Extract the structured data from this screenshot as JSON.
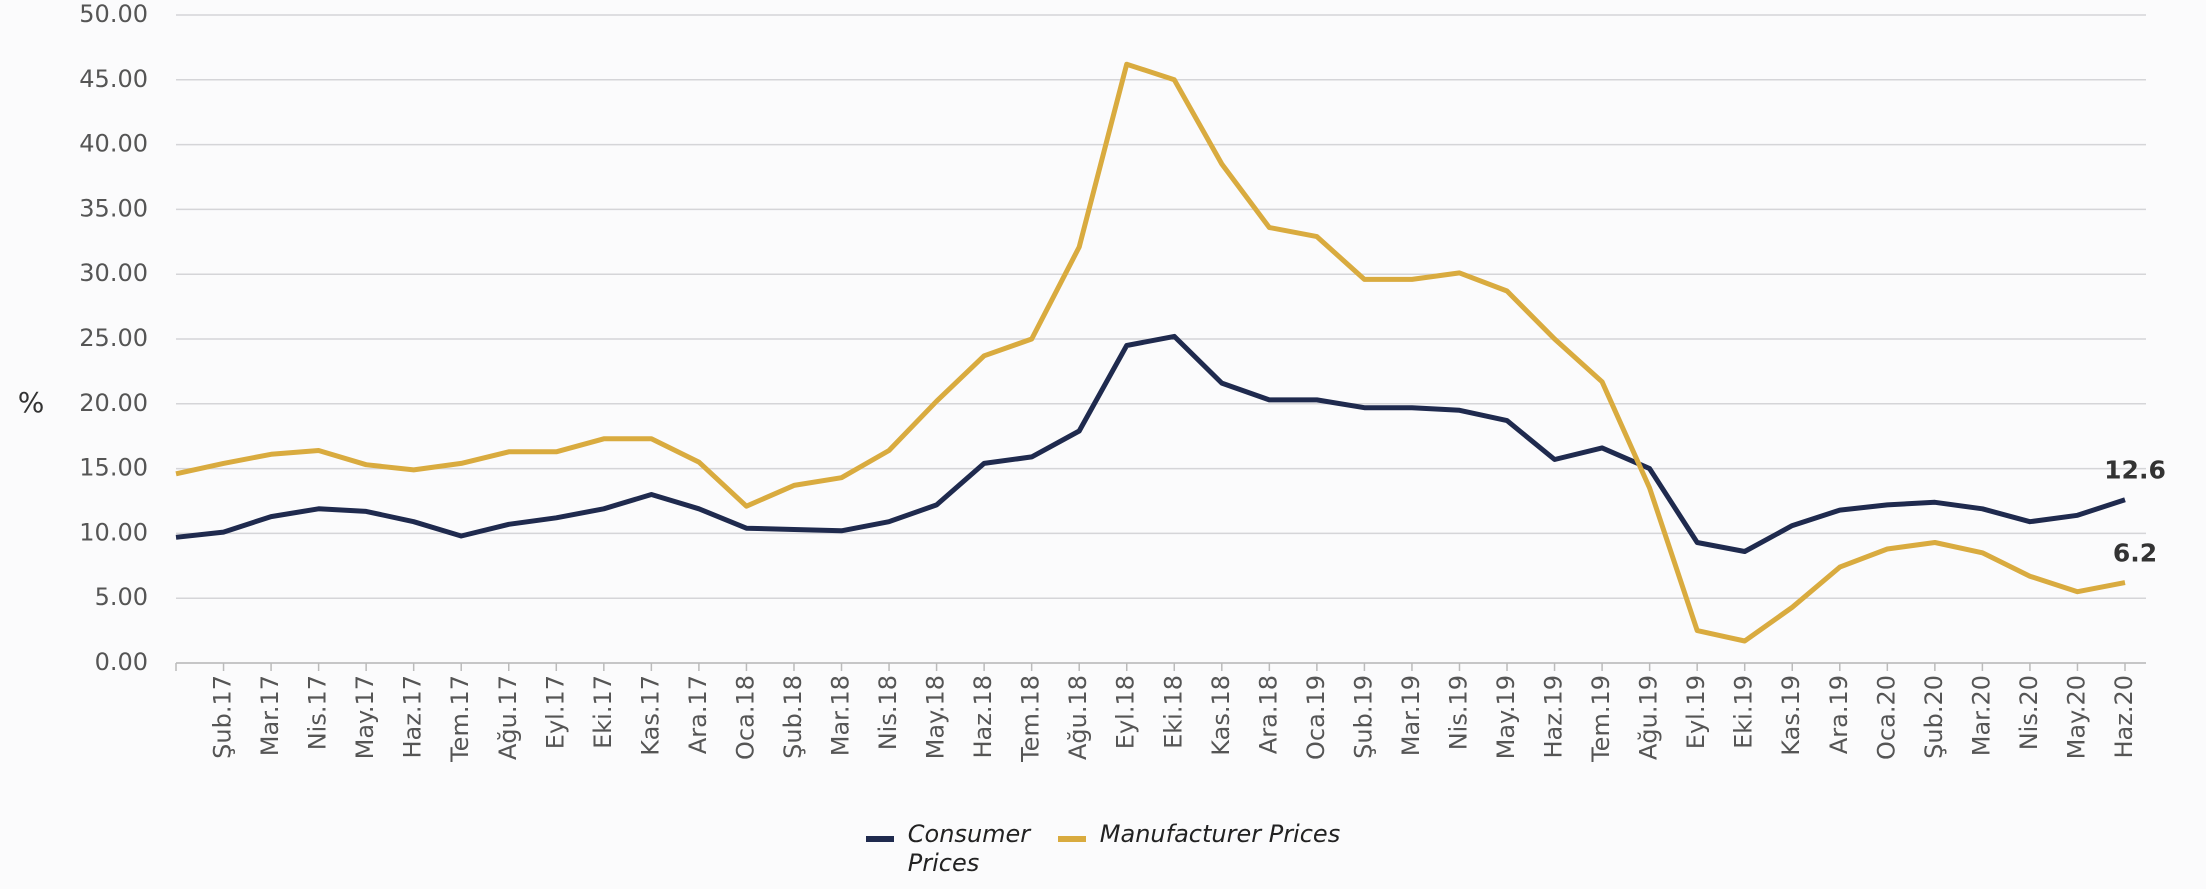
{
  "chart_data": {
    "type": "line",
    "y_label": "%",
    "categories": [
      null,
      "Şub.17",
      "Mar.17",
      "Nis.17",
      "May.17",
      "Haz.17",
      "Tem.17",
      "Ağu.17",
      "Eyl.17",
      "Eki.17",
      "Kas.17",
      "Ara.17",
      "Oca.18",
      "Şub.18",
      "Mar.18",
      "Nis.18",
      "May.18",
      "Haz.18",
      "Tem.18",
      "Ağu.18",
      "Eyl.18",
      "Eki.18",
      "Kas.18",
      "Ara.18",
      "Oca.19",
      "Şub.19",
      "Mar.19",
      "Nis.19",
      "May.19",
      "Haz.19",
      "Tem.19",
      "Ağu.19",
      "Eyl.19",
      "Eki.19",
      "Kas.19",
      "Ara.19",
      "Oca.20",
      "Şub.20",
      "Mar.20",
      "Nis.20",
      "May.20",
      "Haz.20"
    ],
    "series": [
      {
        "name": "Consumer Prices",
        "color": "#1f2a4e",
        "values": [
          9.7,
          10.1,
          11.3,
          11.9,
          11.7,
          10.9,
          9.8,
          10.7,
          11.2,
          11.9,
          13.0,
          11.9,
          10.4,
          10.3,
          10.2,
          10.9,
          12.2,
          15.4,
          15.9,
          17.9,
          24.5,
          25.2,
          21.6,
          20.3,
          20.3,
          19.7,
          19.7,
          19.5,
          18.7,
          15.7,
          16.6,
          15.0,
          9.3,
          8.6,
          10.6,
          11.8,
          12.2,
          12.4,
          11.9,
          10.9,
          11.4,
          12.6
        ],
        "value_labels": [
          null,
          null,
          null,
          null,
          null,
          null,
          null,
          null,
          null,
          null,
          null,
          null,
          null,
          null,
          null,
          null,
          null,
          null,
          null,
          null,
          null,
          null,
          null,
          null,
          null,
          null,
          null,
          null,
          null,
          null,
          null,
          null,
          null,
          null,
          null,
          null,
          null,
          null,
          null,
          null,
          null,
          "12.6"
        ]
      },
      {
        "name": "Manufacturer Prices",
        "color": "#d9ab3f",
        "values": [
          14.6,
          15.4,
          16.1,
          16.4,
          15.3,
          14.9,
          15.4,
          16.3,
          16.3,
          17.3,
          17.3,
          15.5,
          12.1,
          13.7,
          14.3,
          16.4,
          20.2,
          23.7,
          25.0,
          32.1,
          46.2,
          45.0,
          38.5,
          33.6,
          32.9,
          29.6,
          29.6,
          30.1,
          28.7,
          25.0,
          21.7,
          13.5,
          2.5,
          1.7,
          4.3,
          7.4,
          8.8,
          9.3,
          8.5,
          6.7,
          5.5,
          6.2
        ],
        "value_labels": [
          null,
          null,
          null,
          null,
          null,
          null,
          null,
          null,
          null,
          null,
          null,
          null,
          null,
          null,
          null,
          null,
          null,
          null,
          null,
          null,
          null,
          null,
          null,
          null,
          null,
          null,
          null,
          null,
          null,
          null,
          null,
          null,
          null,
          null,
          null,
          null,
          null,
          null,
          null,
          null,
          null,
          "6.2"
        ]
      }
    ],
    "ylim": [
      0,
      50
    ],
    "yticks": [
      {
        "value": 0,
        "label": "0.00"
      },
      {
        "value": 5,
        "label": "5.00"
      },
      {
        "value": 10,
        "label": "10.00"
      },
      {
        "value": 15,
        "label": "15.00"
      },
      {
        "value": 20,
        "label": "20.00"
      },
      {
        "value": 25,
        "label": "25.00"
      },
      {
        "value": 30,
        "label": "30.00"
      },
      {
        "value": 35,
        "label": "35.00"
      },
      {
        "value": 40,
        "label": "40.00"
      },
      {
        "value": 45,
        "label": "45.00"
      },
      {
        "value": 50,
        "label": "50.00"
      }
    ],
    "grid": true,
    "legend": "bottom"
  }
}
